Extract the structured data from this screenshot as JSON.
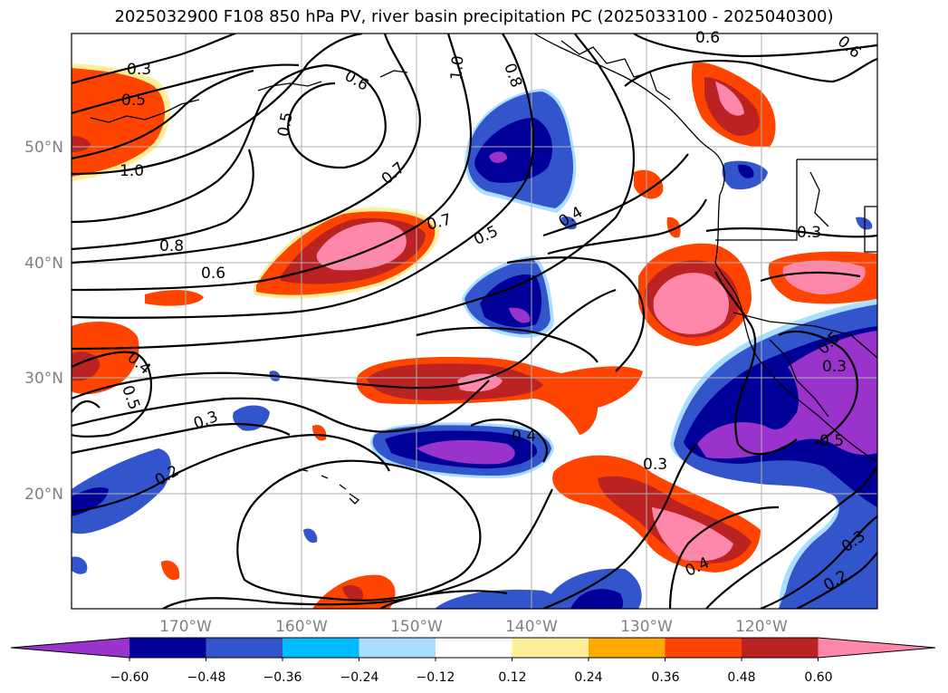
{
  "title": "2025032900 F108 850 hPa PV, river basin precipitation PC (2025033100 - 2025040300)",
  "latitude_labels": [
    "50°N",
    "40°N",
    "30°N",
    "20°N"
  ],
  "longitude_labels": [
    "170°W",
    "160°W",
    "150°W",
    "140°W",
    "130°W",
    "120°W"
  ],
  "colorbar": {
    "colors": [
      "#9933cc",
      "#000099",
      "#3355cc",
      "#00bbff",
      "#aaddff",
      "#ffffff",
      "#ffee99",
      "#ffaa00",
      "#ff4400",
      "#bb2222",
      "#ff88aa"
    ],
    "tick_labels": [
      "−0.60",
      "−0.48",
      "−0.36",
      "−0.24",
      "−0.12",
      "0.12",
      "0.24",
      "0.36",
      "0.48",
      "0.60"
    ]
  },
  "contour_labels": [
    "0.3",
    "0.5",
    "1.0",
    "0.5",
    "0.6",
    "1.0",
    "0.8",
    "0.6",
    "0.6",
    "0.7",
    "0.8",
    "0.6",
    "0.7",
    "0.5",
    "0.4",
    "0.3",
    "0.4",
    "0.5",
    "0.3",
    "0.2",
    "0.4",
    "0.3",
    "0.4",
    "0.5",
    "0.3",
    "0.2",
    "0.5",
    "0.3"
  ]
}
